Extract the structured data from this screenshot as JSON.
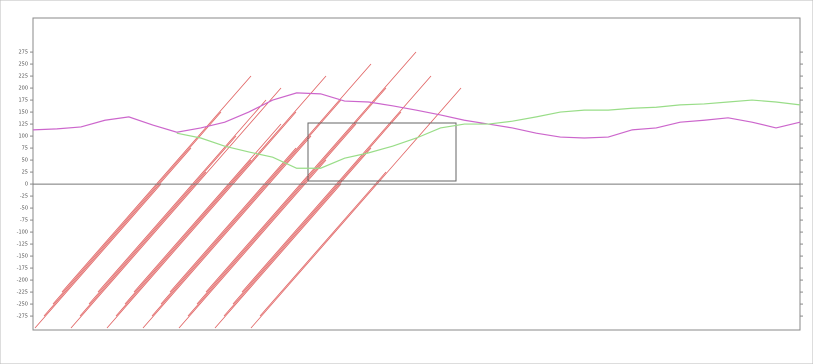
{
  "chart_data": {
    "type": "line",
    "x": [
      0,
      1,
      2,
      3,
      4,
      5,
      6,
      7,
      8,
      9,
      10,
      11,
      12,
      13,
      14,
      15,
      16,
      17,
      18,
      19,
      20,
      21,
      22,
      23,
      24,
      25,
      26,
      27,
      28,
      29,
      30,
      31,
      32
    ],
    "series": [
      {
        "color": "#cc66cc",
        "values": [
          113,
          115,
          119,
          133,
          140,
          123,
          108,
          117,
          129,
          150,
          175,
          190,
          188,
          173,
          171,
          163,
          154,
          144,
          133,
          125,
          117,
          106,
          98,
          96,
          98,
          113,
          117,
          129,
          133,
          138,
          129,
          117,
          129
        ]
      },
      {
        "color": "#99dd88",
        "values": [
          null,
          null,
          null,
          null,
          null,
          null,
          106,
          96,
          79,
          67,
          56,
          33,
          33,
          54,
          65,
          79,
          96,
          117,
          125,
          125,
          131,
          140,
          150,
          154,
          154,
          158,
          160,
          165,
          167,
          171,
          175,
          171,
          165
        ]
      }
    ],
    "xlim": [
      0,
      32
    ],
    "ylim": [
      -304,
      346
    ],
    "yticks": [
      -275,
      -250,
      -225,
      -200,
      -175,
      -150,
      -125,
      -100,
      -75,
      -50,
      -25,
      0,
      25,
      50,
      75,
      100,
      125,
      150,
      175,
      200,
      225,
      250,
      275
    ]
  }
}
